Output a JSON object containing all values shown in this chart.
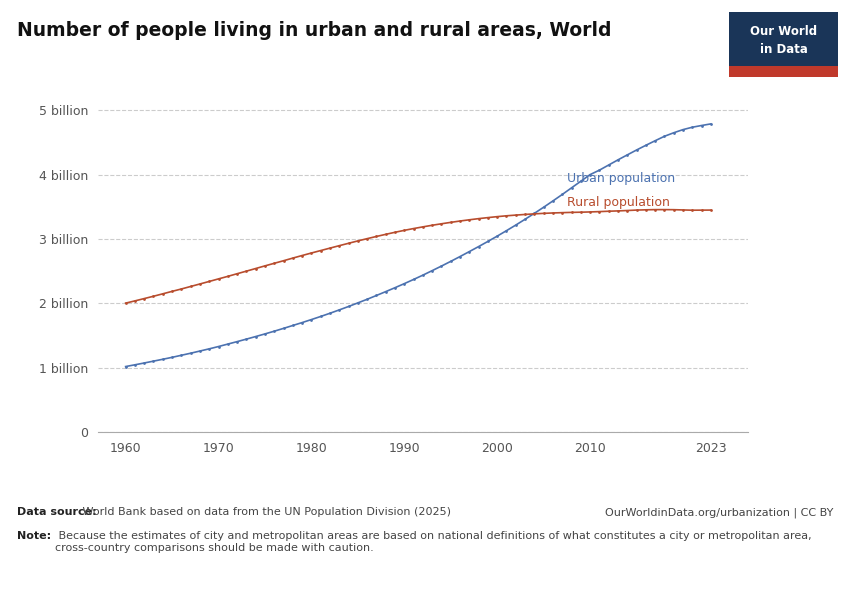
{
  "title": "Number of people living in urban and rural areas, World",
  "years": [
    1960,
    1961,
    1962,
    1963,
    1964,
    1965,
    1966,
    1967,
    1968,
    1969,
    1970,
    1971,
    1972,
    1973,
    1974,
    1975,
    1976,
    1977,
    1978,
    1979,
    1980,
    1981,
    1982,
    1983,
    1984,
    1985,
    1986,
    1987,
    1988,
    1989,
    1990,
    1991,
    1992,
    1993,
    1994,
    1995,
    1996,
    1997,
    1998,
    1999,
    2000,
    2001,
    2002,
    2003,
    2004,
    2005,
    2006,
    2007,
    2008,
    2009,
    2010,
    2011,
    2012,
    2013,
    2014,
    2015,
    2016,
    2017,
    2018,
    2019,
    2020,
    2021,
    2022,
    2023
  ],
  "urban": [
    1.017,
    1.044,
    1.072,
    1.101,
    1.13,
    1.16,
    1.192,
    1.224,
    1.258,
    1.292,
    1.328,
    1.366,
    1.404,
    1.443,
    1.483,
    1.524,
    1.566,
    1.61,
    1.655,
    1.7,
    1.747,
    1.795,
    1.845,
    1.897,
    1.95,
    2.006,
    2.062,
    2.121,
    2.181,
    2.242,
    2.305,
    2.37,
    2.437,
    2.507,
    2.578,
    2.651,
    2.726,
    2.803,
    2.881,
    2.961,
    3.043,
    3.128,
    3.215,
    3.305,
    3.397,
    3.492,
    3.59,
    3.69,
    3.793,
    3.896,
    3.999,
    4.068,
    4.148,
    4.228,
    4.305,
    4.381,
    4.454,
    4.525,
    4.594,
    4.649,
    4.698,
    4.735,
    4.762,
    4.787
  ],
  "rural": [
    2.002,
    2.037,
    2.073,
    2.109,
    2.147,
    2.185,
    2.222,
    2.261,
    2.3,
    2.339,
    2.379,
    2.418,
    2.459,
    2.499,
    2.54,
    2.581,
    2.621,
    2.661,
    2.702,
    2.742,
    2.781,
    2.819,
    2.857,
    2.895,
    2.932,
    2.969,
    3.004,
    3.038,
    3.071,
    3.103,
    3.133,
    3.161,
    3.187,
    3.212,
    3.235,
    3.257,
    3.278,
    3.297,
    3.315,
    3.331,
    3.346,
    3.359,
    3.37,
    3.38,
    3.389,
    3.397,
    3.403,
    3.408,
    3.412,
    3.415,
    3.419,
    3.424,
    3.43,
    3.435,
    3.441,
    3.448,
    3.452,
    3.455,
    3.455,
    3.454,
    3.45,
    3.446,
    3.447,
    3.448
  ],
  "urban_color": "#4C72B0",
  "rural_color": "#B84D2E",
  "bg_color": "#ffffff",
  "grid_color": "#cccccc",
  "yticks": [
    0,
    1,
    2,
    3,
    4,
    5
  ],
  "ytick_labels": [
    "0",
    "1 billion",
    "2 billion",
    "3 billion",
    "4 billion",
    "5 billion"
  ],
  "xtick_labels": [
    "1960",
    "1970",
    "1980",
    "1990",
    "2000",
    "2010",
    "2023"
  ],
  "xticks": [
    1960,
    1970,
    1980,
    1990,
    2000,
    2010,
    2023
  ],
  "ylim": [
    0,
    5.5
  ],
  "xlim": [
    1957,
    2027
  ],
  "datasource_bold": "Data source:",
  "datasource_rest": " World Bank based on data from the UN Population Division (2025)",
  "url": "OurWorldinData.org/urbanization | CC BY",
  "note_bold": "Note:",
  "note_rest": " Because the estimates of city and metropolitan areas are based on national definitions of what constitutes a city or metropolitan area,\ncross-country comparisons should be made with caution.",
  "owid_box_color": "#1a3558",
  "owid_red": "#c0392b",
  "marker_size": 2.0,
  "line_width": 1.2
}
